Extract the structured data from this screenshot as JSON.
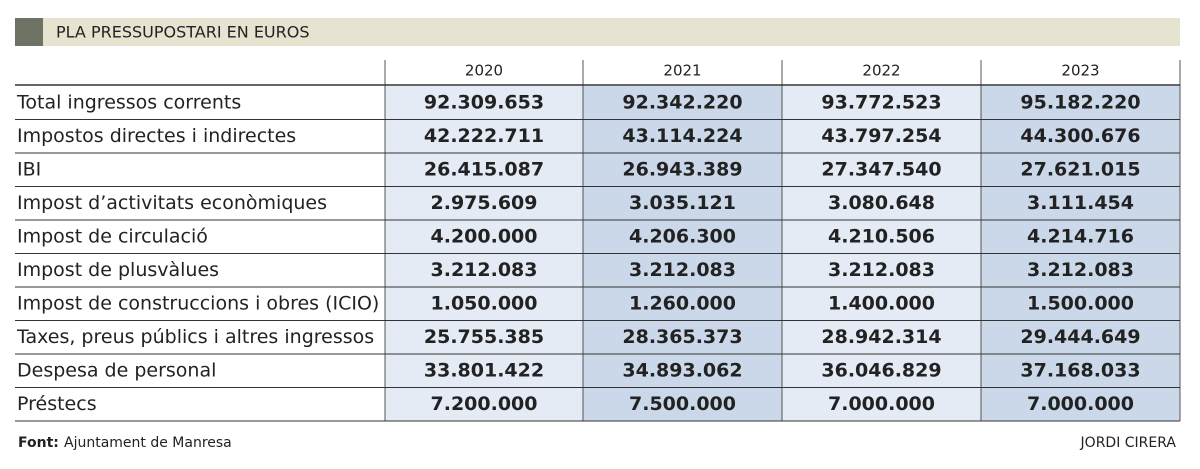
{
  "header": {
    "title": "PLA PRESSUPOSTARI EN EUROS"
  },
  "table": {
    "columns": [
      "2020",
      "2021",
      "2022",
      "2023"
    ],
    "rows": [
      [
        "Total ingressos corrents",
        "92.309.653",
        "92.342.220",
        "93.772.523",
        "95.182.220"
      ],
      [
        "Impostos directes i indirectes",
        "42.222.711",
        "43.114.224",
        "43.797.254",
        "44.300.676"
      ],
      [
        "IBI",
        "26.415.087",
        "26.943.389",
        "27.347.540",
        "27.621.015"
      ],
      [
        "Impost d’activitats econòmiques",
        "2.975.609",
        "3.035.121",
        "3.080.648",
        "3.111.454"
      ],
      [
        "Impost de circulació",
        "4.200.000",
        "4.206.300",
        "4.210.506",
        "4.214.716"
      ],
      [
        "Impost de plusvàlues",
        "3.212.083",
        "3.212.083",
        "3.212.083",
        "3.212.083"
      ],
      [
        "Impost de construccions i obres (ICIO)",
        "1.050.000",
        "1.260.000",
        "1.400.000",
        "1.500.000"
      ],
      [
        "Taxes,  preus públics i altres ingressos",
        "25.755.385",
        "28.365.373",
        "28.942.314",
        "29.444.649"
      ],
      [
        "Despesa de personal",
        "33.801.422",
        "34.893.062",
        "36.046.829",
        "37.168.033"
      ],
      [
        "Préstecs",
        "7.200.000",
        "7.500.000",
        "7.000.000",
        "7.000.000"
      ]
    ]
  },
  "footer": {
    "source_label": "Font:",
    "source": "Ajuntament de Manresa",
    "credit": "JORDI CIRERA"
  }
}
